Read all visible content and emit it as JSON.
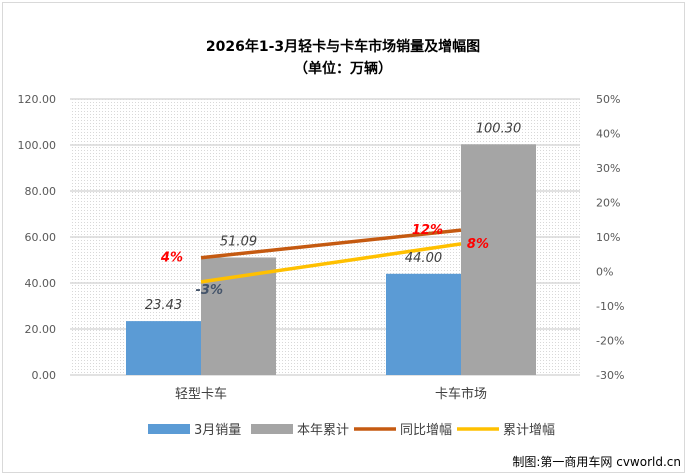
{
  "chart_data": {
    "type": "bar",
    "title": "2026年1-3月轻卡与卡车市场销量及增幅图",
    "subtitle": "（单位：万辆）",
    "categories": [
      "轻型卡车",
      "卡车市场"
    ],
    "series": [
      {
        "name": "3月销量",
        "kind": "bar",
        "axis": "left",
        "color": "#5b9bd5",
        "values": [
          23.43,
          44.0
        ],
        "labels": [
          "23.43",
          "44.00"
        ]
      },
      {
        "name": "本年累计",
        "kind": "bar",
        "axis": "left",
        "color": "#a5a5a5",
        "values": [
          51.09,
          100.3
        ],
        "labels": [
          "51.09",
          "100.30"
        ]
      },
      {
        "name": "同比增幅",
        "kind": "line",
        "axis": "right",
        "color": "#c55a11",
        "values": [
          4,
          12
        ],
        "labels": [
          "4%",
          "12%"
        ]
      },
      {
        "name": "累计增幅",
        "kind": "line",
        "axis": "right",
        "color": "#ffc000",
        "values": [
          -3,
          8
        ],
        "labels": [
          "-3%",
          "8%"
        ]
      }
    ],
    "left_axis": {
      "ylim": [
        0,
        120
      ],
      "ticks": [
        "0.00",
        "20.00",
        "40.00",
        "60.00",
        "80.00",
        "100.00",
        "120.00"
      ]
    },
    "right_axis": {
      "ylim": [
        -30,
        50
      ],
      "ticks": [
        "-30%",
        "-20%",
        "-10%",
        "0%",
        "10%",
        "20%",
        "30%",
        "40%",
        "50%"
      ]
    },
    "grid": true,
    "legend": "bottom"
  },
  "footer": "制图:第一商用车网 cvworld.cn"
}
